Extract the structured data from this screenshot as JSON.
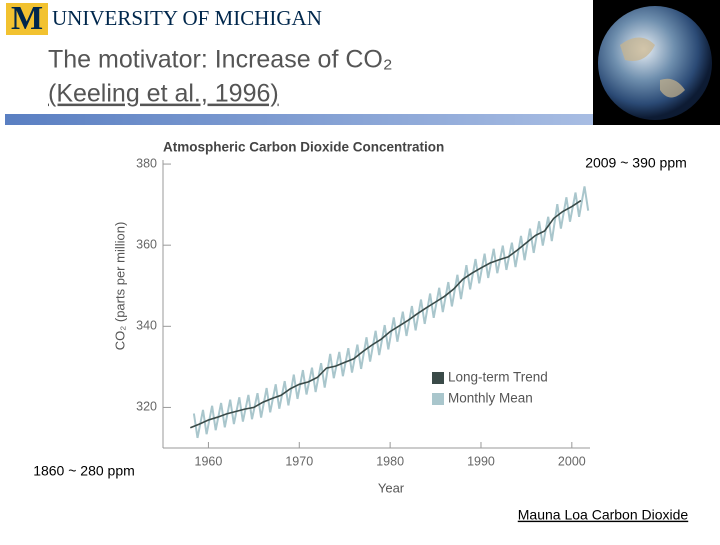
{
  "header": {
    "logo_letter": "M",
    "university": "UNIVERSITY OF MICHIGAN"
  },
  "slide_title": "The motivator: Increase of CO₂",
  "citation": "(Keeling et al., 1996)",
  "annotations": {
    "recent": "2009 ~ 390 ppm",
    "preindustrial": "1860 ~ 280 ppm",
    "link": "Mauna Loa Carbon Dioxide"
  },
  "chart_data": {
    "type": "line",
    "title": "Atmospheric Carbon Dioxide Concentration",
    "x_label": "Year",
    "y_label": "CO₂ (parts per million)",
    "xlim": [
      1955,
      2002
    ],
    "ylim": [
      310,
      381
    ],
    "xticks": [
      1960,
      1970,
      1980,
      1990,
      2000
    ],
    "yticks": [
      320,
      340,
      360,
      380
    ],
    "series": [
      {
        "name": "Monthly Mean",
        "color": "#a9c6cc",
        "x": [
          1958.4,
          1958.8,
          1959.4,
          1959.8,
          1960.4,
          1960.8,
          1961.4,
          1961.8,
          1962.4,
          1962.8,
          1963.4,
          1963.8,
          1964.4,
          1964.8,
          1965.4,
          1965.8,
          1966.4,
          1966.8,
          1967.4,
          1967.8,
          1968.4,
          1968.8,
          1969.4,
          1969.8,
          1970.4,
          1970.8,
          1971.4,
          1971.8,
          1972.4,
          1972.8,
          1973.4,
          1973.8,
          1974.4,
          1974.8,
          1975.4,
          1975.8,
          1976.4,
          1976.8,
          1977.4,
          1977.8,
          1978.4,
          1978.8,
          1979.4,
          1979.8,
          1980.4,
          1980.8,
          1981.4,
          1981.8,
          1982.4,
          1982.8,
          1983.4,
          1983.8,
          1984.4,
          1984.8,
          1985.4,
          1985.8,
          1986.4,
          1986.8,
          1987.4,
          1987.8,
          1988.4,
          1988.8,
          1989.4,
          1989.8,
          1990.4,
          1990.8,
          1991.4,
          1991.8,
          1992.4,
          1992.8,
          1993.4,
          1993.8,
          1994.4,
          1994.8,
          1995.4,
          1995.8,
          1996.4,
          1996.8,
          1997.4,
          1997.8,
          1998.4,
          1998.8,
          1999.4,
          1999.8,
          2000.4,
          2000.8,
          2001.4,
          2001.8
        ],
        "values": [
          318.5,
          312.5,
          319.4,
          313.4,
          320.4,
          314.4,
          321.1,
          315.1,
          321.9,
          315.9,
          322.5,
          316.5,
          323.1,
          317.1,
          323.5,
          317.5,
          324.8,
          318.8,
          325.7,
          319.7,
          326.5,
          320.5,
          328.1,
          322.1,
          329.2,
          323.2,
          329.8,
          323.8,
          330.9,
          324.9,
          333.2,
          327.2,
          333.7,
          327.7,
          334.6,
          328.6,
          335.5,
          329.5,
          337.3,
          331.3,
          338.9,
          332.9,
          340.3,
          334.3,
          342.2,
          336.2,
          343.6,
          337.6,
          345.0,
          339.0,
          346.6,
          340.6,
          348.1,
          342.1,
          349.5,
          343.5,
          350.9,
          344.9,
          352.7,
          346.7,
          355.1,
          349.1,
          356.6,
          350.6,
          357.9,
          351.9,
          359.1,
          353.1,
          359.9,
          353.9,
          360.6,
          354.6,
          362.3,
          356.3,
          364.1,
          358.1,
          365.9,
          359.9,
          367.0,
          361.0,
          370.1,
          364.1,
          371.8,
          365.8,
          373.0,
          367.0,
          374.5,
          368.5
        ]
      },
      {
        "name": "Long-term Trend",
        "color": "#3a4a48",
        "x": [
          1958,
          1959,
          1960,
          1961,
          1962,
          1963,
          1964,
          1965,
          1966,
          1967,
          1968,
          1969,
          1970,
          1971,
          1972,
          1973,
          1974,
          1975,
          1976,
          1977,
          1978,
          1979,
          1980,
          1981,
          1982,
          1983,
          1984,
          1985,
          1986,
          1987,
          1988,
          1989,
          1990,
          1991,
          1992,
          1993,
          1994,
          1995,
          1996,
          1997,
          1998,
          1999,
          2000,
          2001
        ],
        "values": [
          315.0,
          315.9,
          316.9,
          317.6,
          318.4,
          319.0,
          319.6,
          320.0,
          321.3,
          322.2,
          323.0,
          324.6,
          325.7,
          326.3,
          327.4,
          329.7,
          330.2,
          331.1,
          332.0,
          333.8,
          335.4,
          336.8,
          338.7,
          340.1,
          341.5,
          343.1,
          344.6,
          346.0,
          347.4,
          349.2,
          351.6,
          353.1,
          354.4,
          355.6,
          356.4,
          357.1,
          358.8,
          360.6,
          362.4,
          363.5,
          366.6,
          368.3,
          369.5,
          371.0
        ]
      }
    ]
  }
}
